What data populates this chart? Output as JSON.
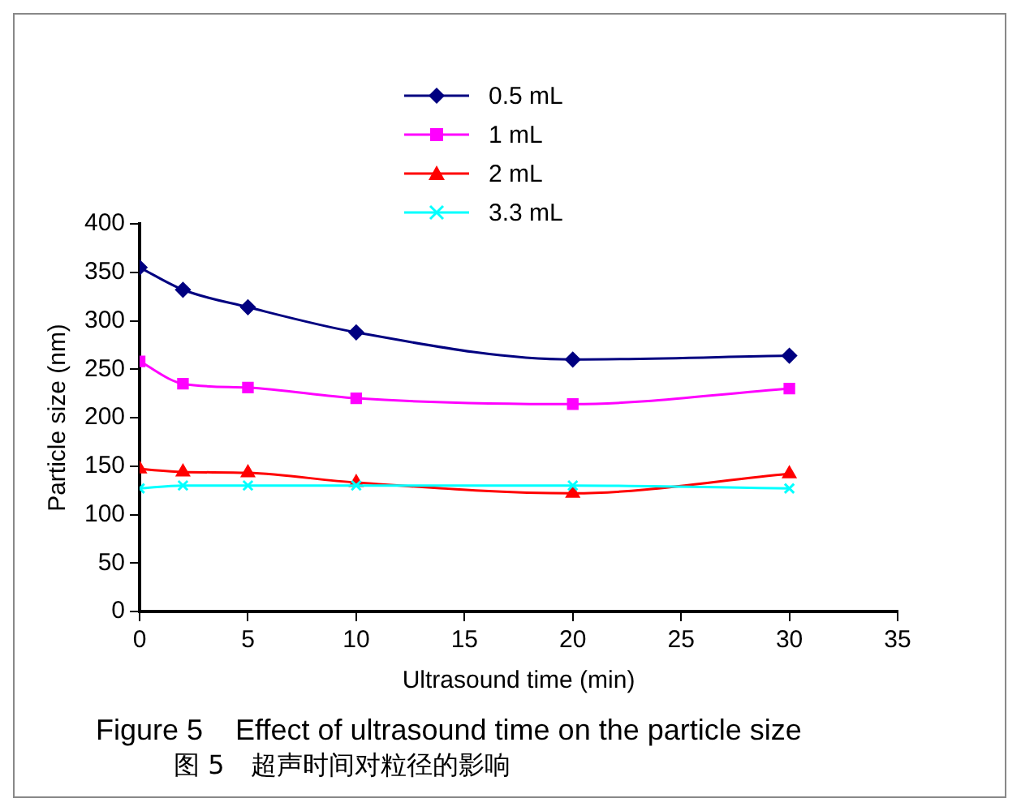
{
  "chart_data": {
    "type": "line",
    "title": "Figure 5    Effect of ultrasound time on the particle size",
    "subtitle": "图 5　超声时间对粒径的影响",
    "xlabel": "Ultrasound time (min)",
    "ylabel": "Particle size (nm)",
    "x": [
      0,
      2,
      5,
      10,
      20,
      30
    ],
    "series": [
      {
        "name": "0.5 mL",
        "color": "#000080",
        "marker": "diamond",
        "values": [
          355,
          332,
          314,
          288,
          260,
          264
        ]
      },
      {
        "name": "1 mL",
        "color": "#ff00ff",
        "marker": "square",
        "values": [
          258,
          235,
          231,
          220,
          214,
          230
        ]
      },
      {
        "name": "2 mL",
        "color": "#ff0000",
        "marker": "triangle",
        "values": [
          147,
          144,
          143,
          133,
          122,
          142
        ]
      },
      {
        "name": "3.3 mL",
        "color": "#00ffff",
        "marker": "cross",
        "values": [
          127,
          130,
          130,
          130,
          130,
          127
        ]
      }
    ],
    "xlim": [
      0,
      35
    ],
    "xticks": [
      0,
      5,
      10,
      15,
      20,
      25,
      30,
      35
    ],
    "ylim": [
      0,
      400
    ],
    "yticks": [
      0,
      50,
      100,
      150,
      200,
      250,
      300,
      350,
      400
    ],
    "grid": false,
    "legend": "top"
  }
}
